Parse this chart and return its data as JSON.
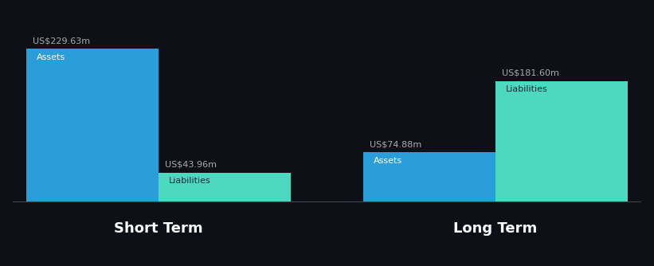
{
  "background_color": "#0d1117",
  "bar_color_assets": "#2b9dd9",
  "bar_color_liabilities": "#4dd9c0",
  "label_color_white": "#ffffff",
  "label_color_dark": "#1a2a3a",
  "value_label_color": "#aaaaaa",
  "section_label_color": "#ffffff",
  "short_term": {
    "label": "Short Term",
    "assets_value": 229.63,
    "liabilities_value": 43.96,
    "assets_label": "Assets",
    "liabilities_label": "Liabilities",
    "assets_value_str": "US$229.63m",
    "liabilities_value_str": "US$43.96m"
  },
  "long_term": {
    "label": "Long Term",
    "assets_value": 74.88,
    "liabilities_value": 181.6,
    "assets_label": "Assets",
    "liabilities_label": "Liabilities",
    "assets_value_str": "US$74.88m",
    "liabilities_value_str": "US$181.60m"
  },
  "max_value": 229.63,
  "font_size_value": 8,
  "font_size_label": 8,
  "font_size_section": 13
}
